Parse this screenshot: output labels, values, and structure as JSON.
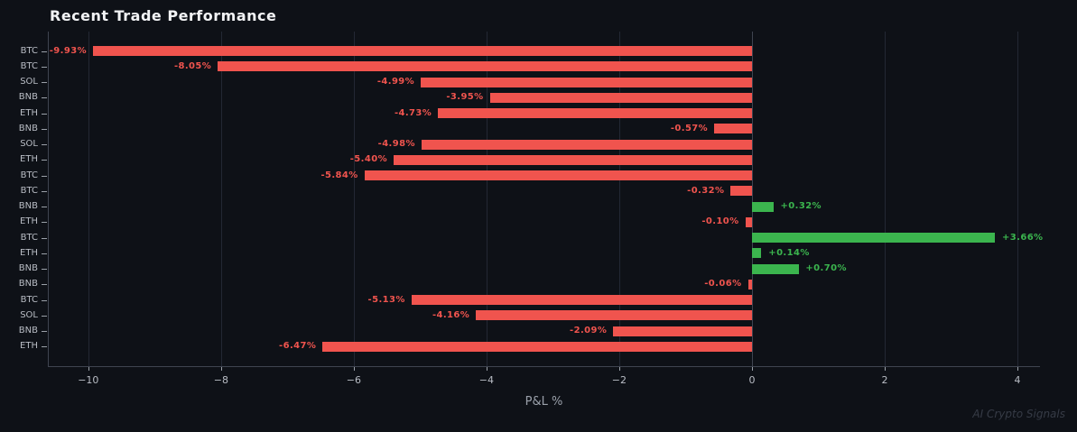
{
  "watermark": "AI Crypto Signals",
  "chart_data": {
    "type": "bar",
    "orientation": "horizontal",
    "title": "Recent Trade Performance",
    "xlabel": "P&L %",
    "ylabel": "",
    "categories": [
      "BTC",
      "BTC",
      "SOL",
      "BNB",
      "ETH",
      "BNB",
      "SOL",
      "ETH",
      "BTC",
      "BTC",
      "BNB",
      "ETH",
      "BTC",
      "ETH",
      "BNB",
      "BNB",
      "BTC",
      "SOL",
      "BNB",
      "ETH"
    ],
    "values": [
      -9.93,
      -8.05,
      -4.99,
      -3.95,
      -4.73,
      -0.57,
      -4.98,
      -5.4,
      -5.84,
      -0.32,
      0.32,
      -0.1,
      3.66,
      0.14,
      0.7,
      -0.06,
      -5.13,
      -4.16,
      -2.09,
      -6.47
    ],
    "value_labels": [
      "-9.93%",
      "-8.05%",
      "-4.99%",
      "-3.95%",
      "-4.73%",
      "-0.57%",
      "-4.98%",
      "-5.40%",
      "-5.84%",
      "-0.32%",
      "+0.32%",
      "-0.10%",
      "+3.66%",
      "+0.14%",
      "+0.70%",
      "-0.06%",
      "-5.13%",
      "-4.16%",
      "-2.09%",
      "-6.47%"
    ],
    "x_ticks": [
      -10,
      -8,
      -6,
      -4,
      -2,
      0,
      2,
      4
    ],
    "x_tick_labels": [
      "−10",
      "−8",
      "−6",
      "−4",
      "−2",
      "0",
      "2",
      "4"
    ],
    "xlim": [
      -10.61,
      4.34
    ],
    "grid": true,
    "legend": "none",
    "colors": {
      "background": "#0e1117",
      "negative": "#f0544e",
      "positive": "#3bb54e",
      "grid": "#232834",
      "zero_line": "#3f4450",
      "spine": "#3f4450",
      "tick_label": "#b9bdc5",
      "tick_mark": "#9aa0a8",
      "axis_label": "#9aa0aa",
      "title": "#f2f3f5",
      "watermark": "#363b46"
    }
  }
}
